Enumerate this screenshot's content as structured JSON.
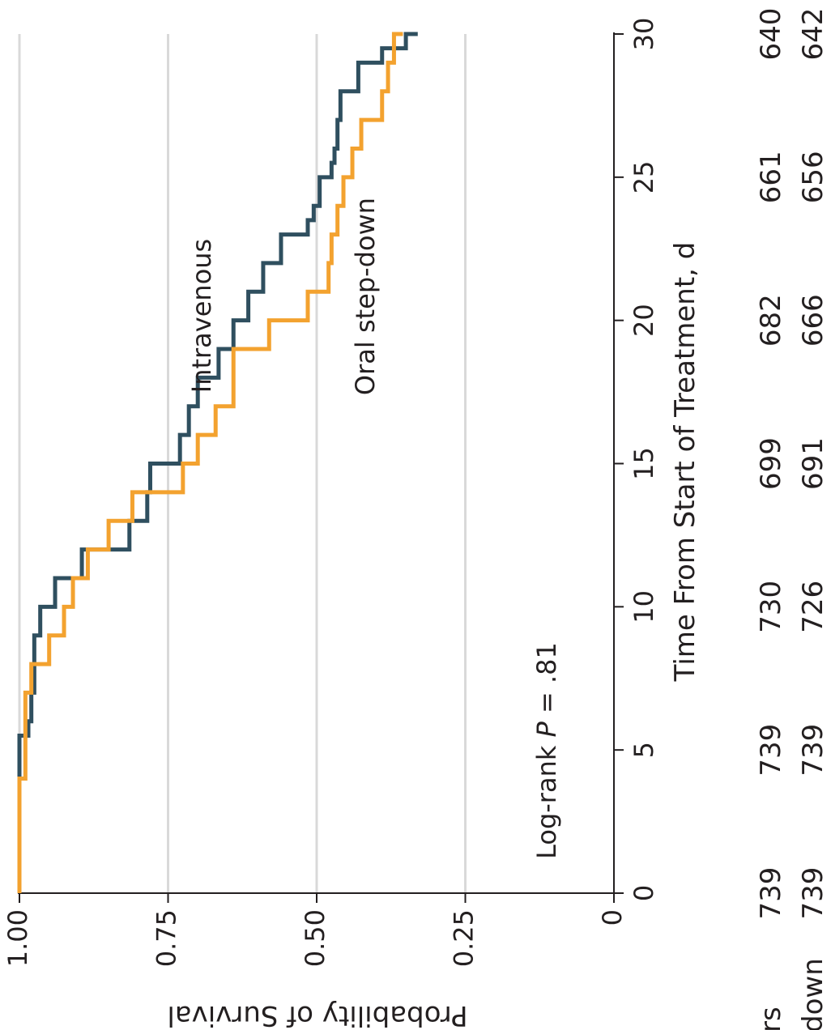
{
  "chart_data": {
    "type": "line",
    "subtype": "kaplan-meier step",
    "xlabel": "Time From Start of Treatment, d",
    "ylabel": "Probability of Survival",
    "xlim": [
      0,
      30
    ],
    "ylim": [
      0,
      1
    ],
    "xticks": [
      0,
      5,
      10,
      15,
      20,
      25,
      30
    ],
    "yticks": [
      {
        "value": 0,
        "label": "0"
      },
      {
        "value": 0.25,
        "label": "0.25"
      },
      {
        "value": 0.5,
        "label": "0.50"
      },
      {
        "value": 0.75,
        "label": "0.75"
      },
      {
        "value": 1,
        "label": "1.00"
      }
    ],
    "grid": "horizontal",
    "annotation": {
      "prefix": "Log-rank ",
      "italic": "P",
      "suffix": " = .81"
    },
    "series": [
      {
        "name": "Intravenous",
        "color": "#2f4f5f",
        "x": [
          1,
          5,
          5.5,
          6,
          7,
          9,
          10,
          11,
          12,
          13,
          14,
          15,
          16,
          17,
          18,
          19,
          20,
          21,
          22,
          23,
          23.5,
          24,
          25,
          25.5,
          26,
          27,
          28,
          29,
          29.5,
          30
        ],
        "y": [
          1.0,
          1.0,
          0.985,
          0.98,
          0.975,
          0.965,
          0.94,
          0.895,
          0.815,
          0.785,
          0.78,
          0.73,
          0.715,
          0.7,
          0.665,
          0.64,
          0.615,
          0.59,
          0.56,
          0.515,
          0.505,
          0.495,
          0.475,
          0.47,
          0.465,
          0.46,
          0.43,
          0.39,
          0.35,
          0.33
        ]
      },
      {
        "name": "Oral step-down",
        "color": "#f3a22f",
        "x": [
          0,
          4,
          7,
          8,
          9,
          10,
          11,
          12,
          13,
          14,
          15,
          16,
          17,
          19,
          20,
          21,
          22,
          23,
          24,
          25,
          26,
          27,
          28,
          29,
          30
        ],
        "y": [
          1.0,
          0.99,
          0.98,
          0.95,
          0.925,
          0.91,
          0.885,
          0.85,
          0.81,
          0.725,
          0.7,
          0.67,
          0.64,
          0.58,
          0.515,
          0.48,
          0.475,
          0.465,
          0.455,
          0.44,
          0.425,
          0.39,
          0.38,
          0.37,
          0.355
        ]
      }
    ],
    "risk_table": {
      "label_fragments": [
        "rs",
        "down"
      ],
      "times": [
        0,
        5,
        10,
        15,
        20,
        25,
        30
      ],
      "rows": [
        {
          "series": "Intravenous",
          "counts": [
            "739",
            "739",
            "730",
            "699",
            "682",
            "661",
            "640"
          ]
        },
        {
          "series": "Oral step-down",
          "counts": [
            "739",
            "739",
            "726",
            "691",
            "666",
            "656",
            "642"
          ]
        }
      ]
    }
  }
}
